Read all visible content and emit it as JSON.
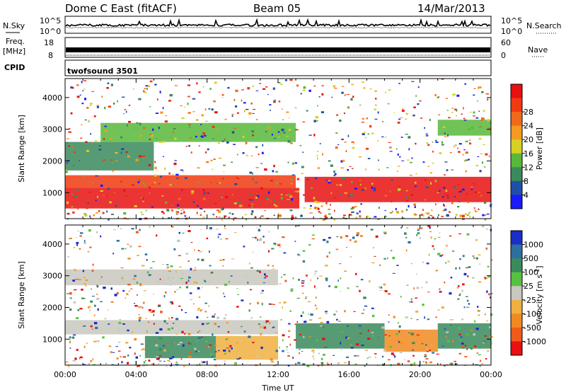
{
  "header": {
    "station": "Dome C East (fitACF)",
    "beam": "Beam 05",
    "date": "14/Mar/2013"
  },
  "strips": {
    "nsky_label": "N.Sky",
    "nsky_top": "10^5",
    "nsky_bottom": "10^0",
    "nsearch_label": "N.Search",
    "nsearch_top": "10^5",
    "nsearch_bottom": "10^0",
    "freq_label": "Freq.",
    "freq_unit": "[MHz]",
    "freq_top": "18",
    "freq_bottom": "8",
    "nave_label": "Nave",
    "nave_top": "60",
    "nave_bottom": "0",
    "cpid_label": "CPID",
    "cpid_value": "twofsound 3501"
  },
  "chart_data": [
    {
      "type": "heatmap",
      "panel": "power",
      "ylabel": "Slant Range [km]",
      "xlabel": "",
      "ylim": [
        180,
        4600
      ],
      "yticks": [
        "1000",
        "2000",
        "3000",
        "4000"
      ],
      "colorbar_label": "Power [dB]",
      "colorbar_ticks": [
        "4",
        "8",
        "12",
        "16",
        "20",
        "24",
        "28"
      ],
      "colorbar_colors": [
        "#1a1aff",
        "#1f4fa8",
        "#3a8a5c",
        "#58b83a",
        "#d8d020",
        "#f59a20",
        "#f06a1a",
        "#f03a10",
        "#e81010"
      ],
      "bands": [
        {
          "t0": 0,
          "t1": 13.2,
          "r0": 500,
          "r1": 1150,
          "c": "#e81010"
        },
        {
          "t0": 0,
          "t1": 13,
          "r0": 1150,
          "r1": 1550,
          "c": "#f03a10"
        },
        {
          "t0": 13.5,
          "t1": 24,
          "r0": 700,
          "r1": 1500,
          "c": "#e81010"
        },
        {
          "t0": 0,
          "t1": 5,
          "r0": 1700,
          "r1": 2600,
          "c": "#3a8a5c"
        },
        {
          "t0": 2,
          "t1": 13,
          "r0": 2600,
          "r1": 3200,
          "c": "#58b83a"
        },
        {
          "t0": 21,
          "t1": 24,
          "r0": 2800,
          "r1": 3300,
          "c": "#58b83a"
        }
      ]
    },
    {
      "type": "heatmap",
      "panel": "velocity",
      "ylabel": "Slant Range [km]",
      "xlabel": "Time UT",
      "ylim": [
        180,
        4600
      ],
      "yticks": [
        "1000",
        "2000",
        "3000",
        "4000"
      ],
      "xticks": [
        "00:00",
        "04:00",
        "08:00",
        "12:00",
        "16:00",
        "20:00",
        "00:00"
      ],
      "xlim": [
        0,
        24
      ],
      "colorbar_label": "Velocity [m s^-1]",
      "colorbar_ticks": [
        "1000",
        "500",
        "100",
        "25",
        "-25",
        "-100",
        "-500",
        "-1000"
      ],
      "colorbar_colors": [
        "#1a2fc8",
        "#2d6fa0",
        "#3a8a5c",
        "#58c040",
        "#c8c8c0",
        "#f0b040",
        "#f08a20",
        "#f05a1a",
        "#e81010"
      ],
      "bands": [
        {
          "t0": 0,
          "t1": 12,
          "r0": 1150,
          "r1": 1600,
          "c": "#c8c8c0"
        },
        {
          "t0": 4.5,
          "t1": 8.5,
          "r0": 400,
          "r1": 1100,
          "c": "#3a8a5c"
        },
        {
          "t0": 8.5,
          "t1": 12,
          "r0": 350,
          "r1": 1100,
          "c": "#f0b040"
        },
        {
          "t0": 13,
          "t1": 18,
          "r0": 700,
          "r1": 1500,
          "c": "#3a8a5c"
        },
        {
          "t0": 18,
          "t1": 21,
          "r0": 600,
          "r1": 1300,
          "c": "#f08a20"
        },
        {
          "t0": 21,
          "t1": 24,
          "r0": 700,
          "r1": 1500,
          "c": "#3a8a5c"
        },
        {
          "t0": 0,
          "t1": 12,
          "r0": 2700,
          "r1": 3200,
          "c": "#c8c8c0"
        }
      ]
    }
  ]
}
